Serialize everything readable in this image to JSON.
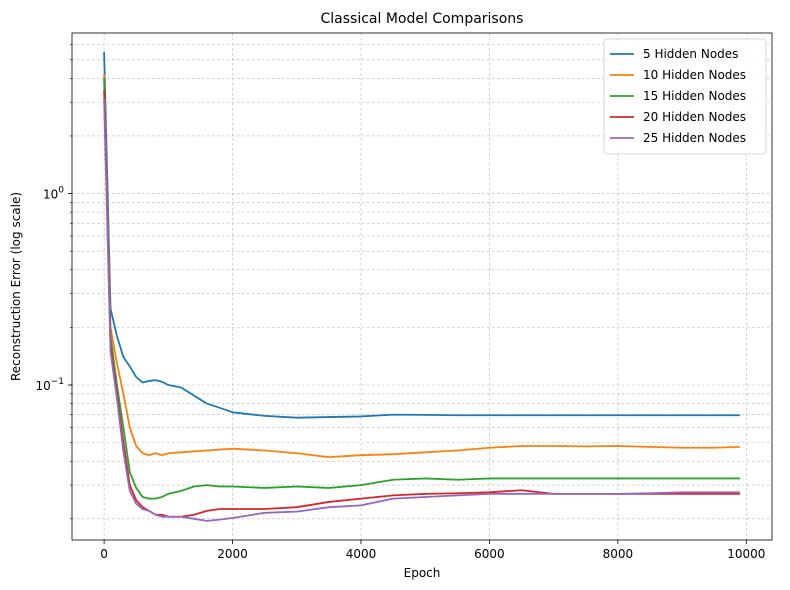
{
  "chart_data": {
    "type": "line",
    "title": "Classical Model Comparisons",
    "xlabel": "Epoch",
    "ylabel": "Reconstruction Error (log scale)",
    "yscale": "log",
    "xlim": [
      -500,
      10400
    ],
    "ylim": [
      0.0155,
      6.9
    ],
    "grid": true,
    "legend_position": "top-right",
    "x_ticks": [
      0,
      2000,
      4000,
      6000,
      8000,
      10000
    ],
    "x_tick_labels": [
      "0",
      "2000",
      "4000",
      "6000",
      "8000",
      "10000"
    ],
    "y_ticks": [
      0.1,
      1
    ],
    "y_tick_labels": [
      "10^{-1}",
      "10^{0}"
    ],
    "x": [
      0,
      100,
      200,
      300,
      400,
      500,
      600,
      700,
      800,
      900,
      1000,
      1200,
      1400,
      1600,
      1800,
      2000,
      2500,
      3000,
      3500,
      4000,
      4500,
      5000,
      5500,
      6000,
      6500,
      7000,
      7500,
      8000,
      8500,
      9000,
      9500,
      9900
    ],
    "series": [
      {
        "name": "5 Hidden Nodes",
        "color": "#1f77b4",
        "values": [
          5.5,
          0.25,
          0.18,
          0.14,
          0.125,
          0.11,
          0.103,
          0.105,
          0.106,
          0.104,
          0.1,
          0.097,
          0.088,
          0.08,
          0.076,
          0.072,
          0.069,
          0.0675,
          0.068,
          0.0685,
          0.07,
          0.0698,
          0.0695,
          0.0695,
          0.0695,
          0.0695,
          0.0695,
          0.0695,
          0.0695,
          0.0695,
          0.0695,
          0.0695
        ]
      },
      {
        "name": "10 Hidden Nodes",
        "color": "#ff7f0e",
        "values": [
          4.2,
          0.2,
          0.13,
          0.09,
          0.06,
          0.048,
          0.044,
          0.043,
          0.044,
          0.043,
          0.044,
          0.0445,
          0.045,
          0.0455,
          0.046,
          0.0465,
          0.0455,
          0.044,
          0.042,
          0.043,
          0.0435,
          0.0445,
          0.0455,
          0.047,
          0.048,
          0.048,
          0.0478,
          0.048,
          0.0475,
          0.047,
          0.047,
          0.0475
        ]
      },
      {
        "name": "15 Hidden Nodes",
        "color": "#2ca02c",
        "values": [
          4.0,
          0.18,
          0.1,
          0.06,
          0.035,
          0.029,
          0.026,
          0.0255,
          0.0255,
          0.026,
          0.027,
          0.028,
          0.0295,
          0.03,
          0.0295,
          0.0295,
          0.029,
          0.0295,
          0.029,
          0.03,
          0.032,
          0.0325,
          0.032,
          0.0325,
          0.0325,
          0.0325,
          0.0325,
          0.0325,
          0.0325,
          0.0325,
          0.0325,
          0.0325
        ]
      },
      {
        "name": "20 Hidden Nodes",
        "color": "#d62728",
        "values": [
          3.5,
          0.16,
          0.09,
          0.05,
          0.03,
          0.025,
          0.023,
          0.022,
          0.021,
          0.021,
          0.0205,
          0.0205,
          0.021,
          0.022,
          0.0225,
          0.0225,
          0.0225,
          0.023,
          0.0245,
          0.0255,
          0.0265,
          0.027,
          0.0272,
          0.0275,
          0.0282,
          0.027,
          0.027,
          0.027,
          0.027,
          0.027,
          0.027,
          0.027
        ]
      },
      {
        "name": "25 Hidden Nodes",
        "color": "#9467bd",
        "values": [
          3.1,
          0.15,
          0.085,
          0.045,
          0.028,
          0.024,
          0.0225,
          0.022,
          0.021,
          0.0205,
          0.0205,
          0.0205,
          0.02,
          0.0195,
          0.0198,
          0.0202,
          0.0215,
          0.0218,
          0.023,
          0.0235,
          0.0255,
          0.026,
          0.0265,
          0.027,
          0.027,
          0.027,
          0.027,
          0.027,
          0.0272,
          0.0275,
          0.0275,
          0.0275
        ]
      }
    ]
  }
}
